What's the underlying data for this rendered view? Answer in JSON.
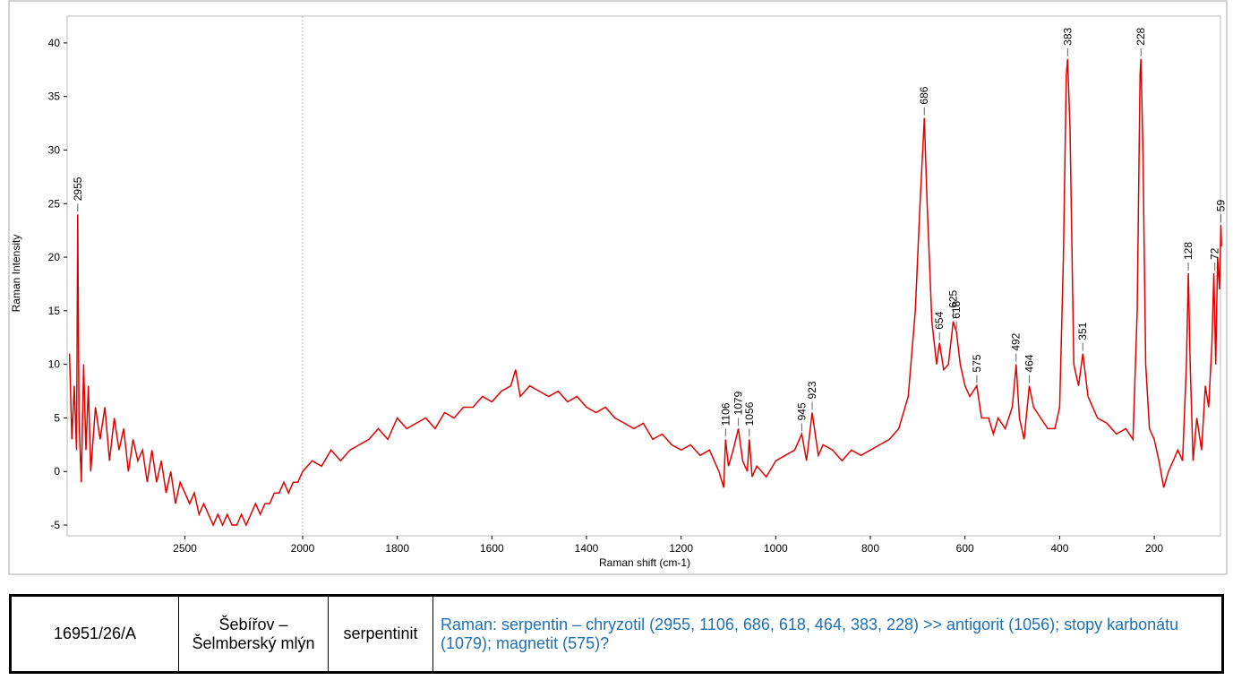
{
  "chart_data": {
    "type": "line",
    "xlabel": "Raman shift (cm-1)",
    "ylabel": "Raman Intensity",
    "xlim": [
      3000,
      60
    ],
    "xbreak": 2000,
    "ylim": [
      -6,
      42.5
    ],
    "xticks": [
      2500,
      2000,
      1800,
      1600,
      1400,
      1200,
      1000,
      800,
      600,
      400,
      200
    ],
    "yticks": [
      -5,
      0,
      5,
      10,
      15,
      20,
      25,
      30,
      35,
      40
    ],
    "series": [
      {
        "color": "#e00000",
        "x": [
          2990,
          2980,
          2970,
          2960,
          2955,
          2950,
          2940,
          2930,
          2920,
          2910,
          2900,
          2880,
          2860,
          2840,
          2820,
          2800,
          2780,
          2760,
          2740,
          2720,
          2700,
          2680,
          2660,
          2640,
          2620,
          2600,
          2580,
          2560,
          2540,
          2520,
          2500,
          2480,
          2460,
          2440,
          2420,
          2400,
          2380,
          2360,
          2340,
          2320,
          2300,
          2280,
          2260,
          2240,
          2220,
          2200,
          2180,
          2160,
          2140,
          2120,
          2100,
          2080,
          2060,
          2040,
          2020,
          2000,
          1980,
          1960,
          1940,
          1920,
          1900,
          1880,
          1860,
          1840,
          1820,
          1800,
          1780,
          1760,
          1740,
          1720,
          1700,
          1680,
          1660,
          1640,
          1620,
          1600,
          1580,
          1560,
          1550,
          1540,
          1520,
          1500,
          1480,
          1460,
          1440,
          1420,
          1400,
          1380,
          1360,
          1340,
          1320,
          1300,
          1280,
          1260,
          1240,
          1220,
          1200,
          1180,
          1160,
          1140,
          1120,
          1110,
          1106,
          1100,
          1090,
          1079,
          1070,
          1060,
          1056,
          1050,
          1040,
          1020,
          1000,
          980,
          960,
          945,
          935,
          923,
          910,
          900,
          880,
          860,
          840,
          820,
          800,
          780,
          760,
          740,
          720,
          705,
          695,
          686,
          680,
          670,
          660,
          654,
          645,
          635,
          625,
          618,
          610,
          600,
          590,
          575,
          565,
          550,
          540,
          530,
          515,
          500,
          492,
          485,
          475,
          464,
          455,
          440,
          425,
          410,
          400,
          392,
          386,
          383,
          378,
          370,
          360,
          351,
          340,
          320,
          300,
          280,
          260,
          245,
          236,
          230,
          228,
          224,
          218,
          210,
          200,
          190,
          180,
          170,
          160,
          150,
          140,
          132,
          128,
          124,
          118,
          110,
          100,
          92,
          85,
          78,
          74,
          70,
          66,
          62,
          59,
          58
        ],
        "values": [
          11,
          3,
          8,
          2,
          24,
          5,
          -1,
          10,
          2,
          8,
          0,
          6,
          3,
          6,
          1,
          5,
          2,
          4,
          0,
          3,
          1,
          2,
          -1,
          2,
          -1,
          1,
          -2,
          0,
          -3,
          -1,
          -2,
          -3,
          -2,
          -4,
          -3,
          -4,
          -5,
          -4,
          -5,
          -4,
          -5,
          -5,
          -4,
          -5,
          -4,
          -3,
          -4,
          -3,
          -3,
          -2,
          -2,
          -1,
          -2,
          -1,
          -1,
          0,
          1,
          0.5,
          2,
          1,
          2,
          2.5,
          3,
          4,
          3,
          5,
          4,
          4.5,
          5,
          4,
          5.5,
          5,
          6,
          6,
          7,
          6.5,
          7.5,
          8,
          9.5,
          7,
          8,
          7.5,
          7,
          7.5,
          6.5,
          7,
          6,
          5.5,
          6,
          5,
          4.5,
          4,
          4.5,
          3,
          3.5,
          2.5,
          2,
          2.5,
          1.5,
          2,
          0,
          -1.5,
          3,
          0.5,
          2,
          4,
          1,
          0,
          3,
          -0.5,
          0.5,
          -0.5,
          1,
          1.5,
          2,
          3.5,
          1,
          5.5,
          1.5,
          2.5,
          2,
          1,
          2,
          1.5,
          2,
          2.5,
          3,
          4,
          7,
          15,
          25,
          33,
          25,
          14,
          10,
          12,
          9.5,
          10,
          14,
          13,
          10,
          8,
          7,
          8,
          5,
          5,
          3.5,
          5,
          4,
          6,
          10,
          5,
          3,
          8,
          6,
          5,
          4,
          4,
          6,
          20,
          37,
          38.5,
          32,
          10,
          8,
          11,
          7,
          5,
          4.5,
          3.5,
          4,
          3,
          15,
          37,
          38.5,
          30,
          10,
          4,
          3,
          1,
          -1.5,
          0,
          1,
          2,
          1,
          10,
          18.5,
          10,
          1,
          5,
          2,
          8,
          6,
          12,
          18.5,
          10,
          20,
          17,
          23,
          21
        ]
      }
    ],
    "peaks": [
      2955,
      1106,
      1079,
      1056,
      945,
      923,
      686,
      654,
      625,
      618,
      575,
      492,
      464,
      383,
      351,
      228,
      128,
      72,
      59
    ]
  },
  "table": {
    "rows": [
      [
        "16951/26/A",
        "Šebířov – Šelmberský mlýn",
        "serpentinit",
        "Raman: serpentin – chryzotil (2955, 1106, 686, 618, 464, 383, 228) >> antigorit (1056); stopy karbonátu (1079); magnetit (575)?"
      ]
    ]
  }
}
